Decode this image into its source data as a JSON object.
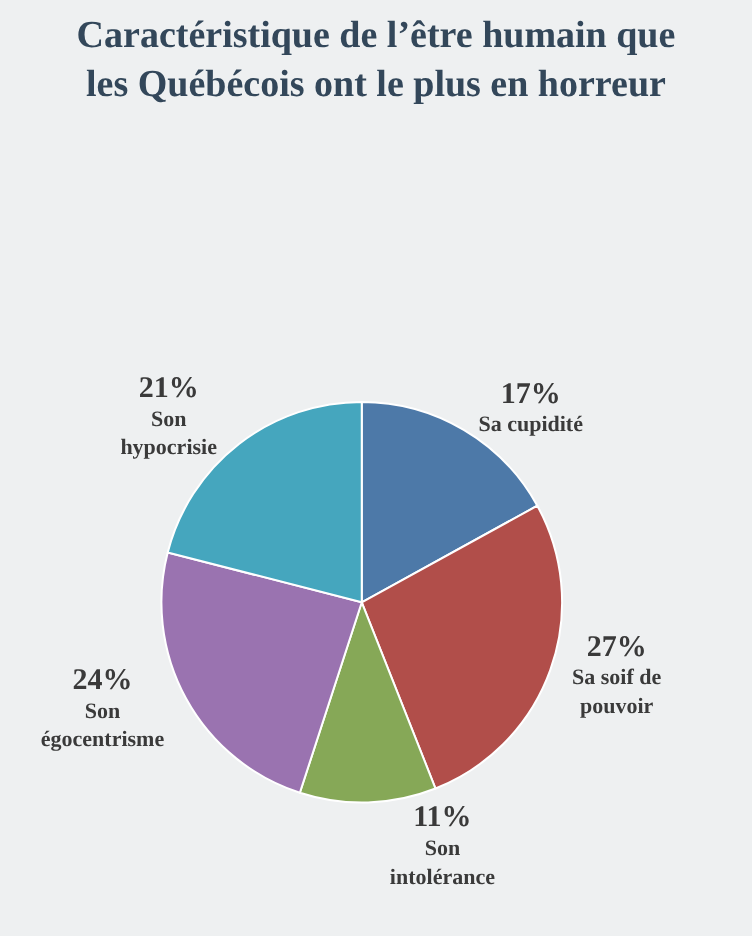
{
  "chart_data": {
    "type": "pie",
    "title": "Caractéristique de l’être humain que les Québécois ont le plus en horreur",
    "categories": [
      "Sa cupidité",
      "Sa soif de pouvoir",
      "Son intolérance",
      "Son égocentrisme",
      "Son hypocrisie"
    ],
    "values": [
      17,
      27,
      11,
      24,
      21
    ],
    "value_labels": [
      "17%",
      "27%",
      "11%",
      "24%",
      "21%"
    ],
    "colors": [
      "#4d79a8",
      "#b14e4a",
      "#86a857",
      "#9a73b0",
      "#45a6be"
    ],
    "legend": false
  }
}
